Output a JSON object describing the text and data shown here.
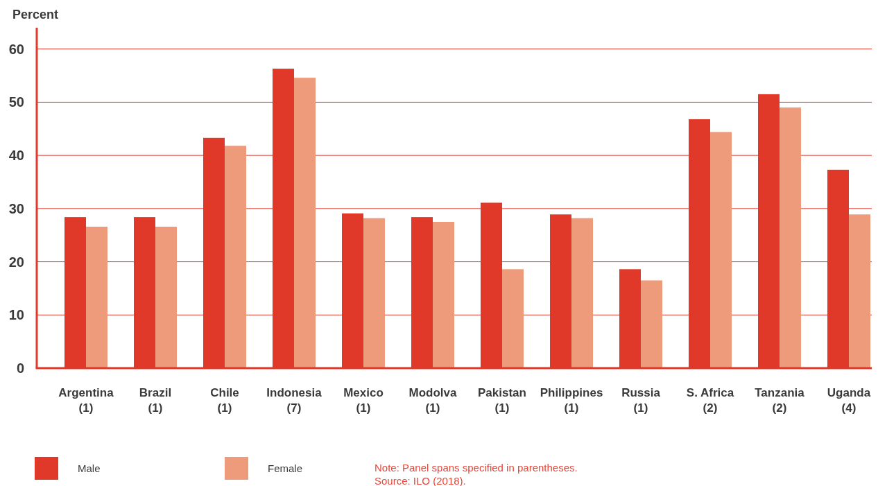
{
  "chart_data": {
    "type": "bar",
    "ylabel": "Percent",
    "categories": [
      "Argentina\n(1)",
      "Brazil\n(1)",
      "Chile\n(1)",
      "Indonesia\n(7)",
      "Mexico\n(1)",
      "Modolva\n(1)",
      "Pakistan\n(1)",
      "Philippines\n(1)",
      "Russia\n(1)",
      "S. Africa\n(2)",
      "Tanzania\n(2)",
      "Uganda\n(4)"
    ],
    "series": [
      {
        "name": "Male",
        "color": "#e0392a",
        "values": [
          28.4,
          28.4,
          43.3,
          56.3,
          29.1,
          28.4,
          31.1,
          28.9,
          18.6,
          46.8,
          51.5,
          37.3
        ]
      },
      {
        "name": "Female",
        "color": "#ee9b7c",
        "values": [
          26.6,
          26.6,
          41.8,
          54.6,
          28.2,
          27.5,
          18.6,
          28.2,
          16.5,
          44.4,
          49.0,
          28.9
        ]
      }
    ],
    "ylim": [
      0,
      64
    ],
    "yticks": [
      0,
      10,
      20,
      30,
      40,
      50,
      60
    ],
    "grid": "y",
    "legend": "bottom",
    "annotations": [
      "Note: Panel spans specified in parentheses.",
      "Source: ILO (2018)."
    ]
  }
}
